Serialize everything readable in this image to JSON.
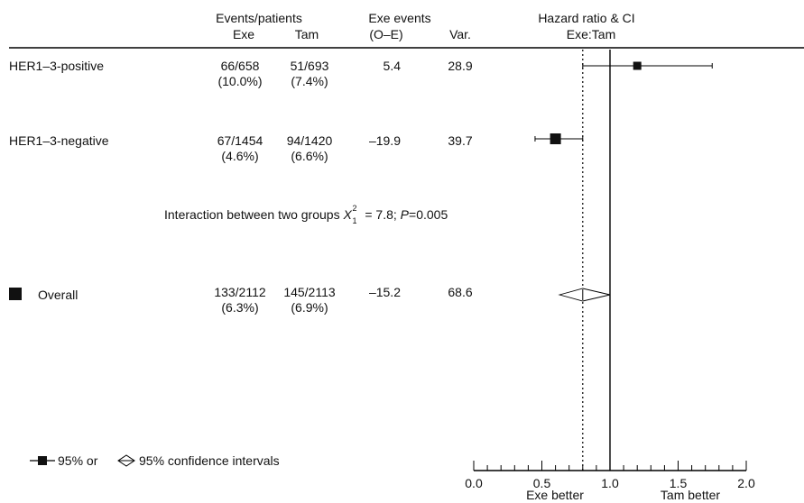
{
  "header": {
    "events_patients": "Events/patients",
    "exe": "Exe",
    "tam": "Tam",
    "exe_events": "Exe events",
    "o_e": "(O–E)",
    "var": "Var.",
    "hazard_ratio": "Hazard ratio & CI",
    "exe_tam": "Exe:Tam"
  },
  "rows": [
    {
      "label": "HER1–3-positive",
      "exe": "66/658",
      "exe_pct": "(10.0%)",
      "tam": "51/693",
      "tam_pct": "(7.4%)",
      "oe": "5.4",
      "var": "28.9"
    },
    {
      "label": "HER1–3-negative",
      "exe": "67/1454",
      "exe_pct": "(4.6%)",
      "tam": "94/1420",
      "tam_pct": "(6.6%)",
      "oe": "–19.9",
      "var": "39.7"
    }
  ],
  "interaction": {
    "text": "Interaction between two groups ",
    "chi": "X",
    "chi_sub": "1",
    "chi_sup": "2",
    "stat": " = 7.8; ",
    "p": "P",
    "pval": "=0.005"
  },
  "overall": {
    "label": "Overall",
    "exe": "133/2112",
    "exe_pct": "(6.3%)",
    "tam": "145/2113",
    "tam_pct": "(6.9%)",
    "oe": "–15.2",
    "var": "68.6"
  },
  "legend": {
    "or_label": "95% or",
    "ci_label": "95% confidence intervals"
  },
  "axis": {
    "exe_better": "Exe better",
    "tam_better": "Tam better"
  },
  "chart_data": {
    "type": "forest",
    "xlim": [
      0.0,
      2.0
    ],
    "ticks": [
      "0.0",
      "0.5",
      "1.0",
      "1.5",
      "2.0"
    ],
    "reference_line": 1.0,
    "overall_reference": 0.8,
    "points": [
      {
        "label": "HER1–3-positive",
        "hr": 1.2,
        "ci_low": 0.8,
        "ci_high": 1.75,
        "shape": "square"
      },
      {
        "label": "HER1–3-negative",
        "hr": 0.6,
        "ci_low": 0.45,
        "ci_high": 0.8,
        "shape": "square"
      },
      {
        "label": "Overall",
        "hr": 0.8,
        "ci_low": 0.63,
        "ci_high": 1.0,
        "shape": "diamond"
      }
    ]
  }
}
